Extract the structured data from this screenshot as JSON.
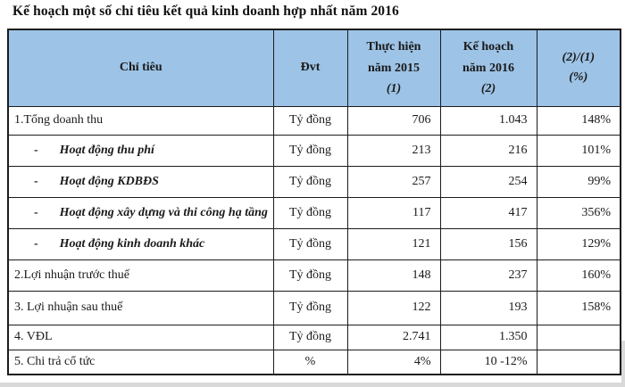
{
  "title": "Kế hoạch một số chỉ tiêu kết quả kinh doanh hợp nhất năm 2016",
  "colors": {
    "header_bg": "#9DC3E6",
    "border": "#1c1c1c"
  },
  "table": {
    "sub_marker": "-",
    "header": {
      "criteria": "Chỉ tiêu",
      "unit": "Đvt",
      "actual_line1": "Thực hiện",
      "actual_line2": "năm 2015",
      "actual_line3": "(1)",
      "plan_line1": "Kế hoạch",
      "plan_line2": "năm 2016",
      "plan_line3": "(2)",
      "ratio_line1": "(2)/(1)",
      "ratio_line2": "(%)"
    },
    "rows": [
      {
        "label": "1.Tổng doanh thu",
        "sub": false,
        "unit": "Tỷ đồng",
        "actual_2015": "706",
        "plan_2016": "1.043",
        "ratio": "148%"
      },
      {
        "label": "Hoạt động thu phí",
        "sub": true,
        "unit": "Tỷ đồng",
        "actual_2015": "213",
        "plan_2016": "216",
        "ratio": "101%"
      },
      {
        "label": "Hoạt động KDBĐS",
        "sub": true,
        "unit": "Tỷ đồng",
        "actual_2015": "257",
        "plan_2016": "254",
        "ratio": "99%"
      },
      {
        "label": "Hoạt động xây dựng và thi công hạ tầng",
        "sub": true,
        "unit": "Tỷ đồng",
        "actual_2015": "117",
        "plan_2016": "417",
        "ratio": "356%"
      },
      {
        "label": "Hoạt động kinh doanh khác",
        "sub": true,
        "unit": "Tỷ đồng",
        "actual_2015": "121",
        "plan_2016": "156",
        "ratio": "129%"
      },
      {
        "label": "2.Lợi nhuận trước thuế",
        "sub": false,
        "unit": "Tỷ đồng",
        "actual_2015": "148",
        "plan_2016": "237",
        "ratio": "160%"
      },
      {
        "label": "3. Lợi nhuận sau thuế",
        "sub": false,
        "unit": "Tỷ đồng",
        "actual_2015": "122",
        "plan_2016": "193",
        "ratio": "158%"
      },
      {
        "label": "4. VĐL",
        "sub": false,
        "unit": "Tỷ đồng",
        "actual_2015": "2.741",
        "plan_2016": "1.350",
        "ratio": ""
      },
      {
        "label": "5. Chi trả cổ tức",
        "sub": false,
        "unit": "%",
        "actual_2015": "4%",
        "plan_2016": "10 -12%",
        "ratio": ""
      }
    ]
  }
}
